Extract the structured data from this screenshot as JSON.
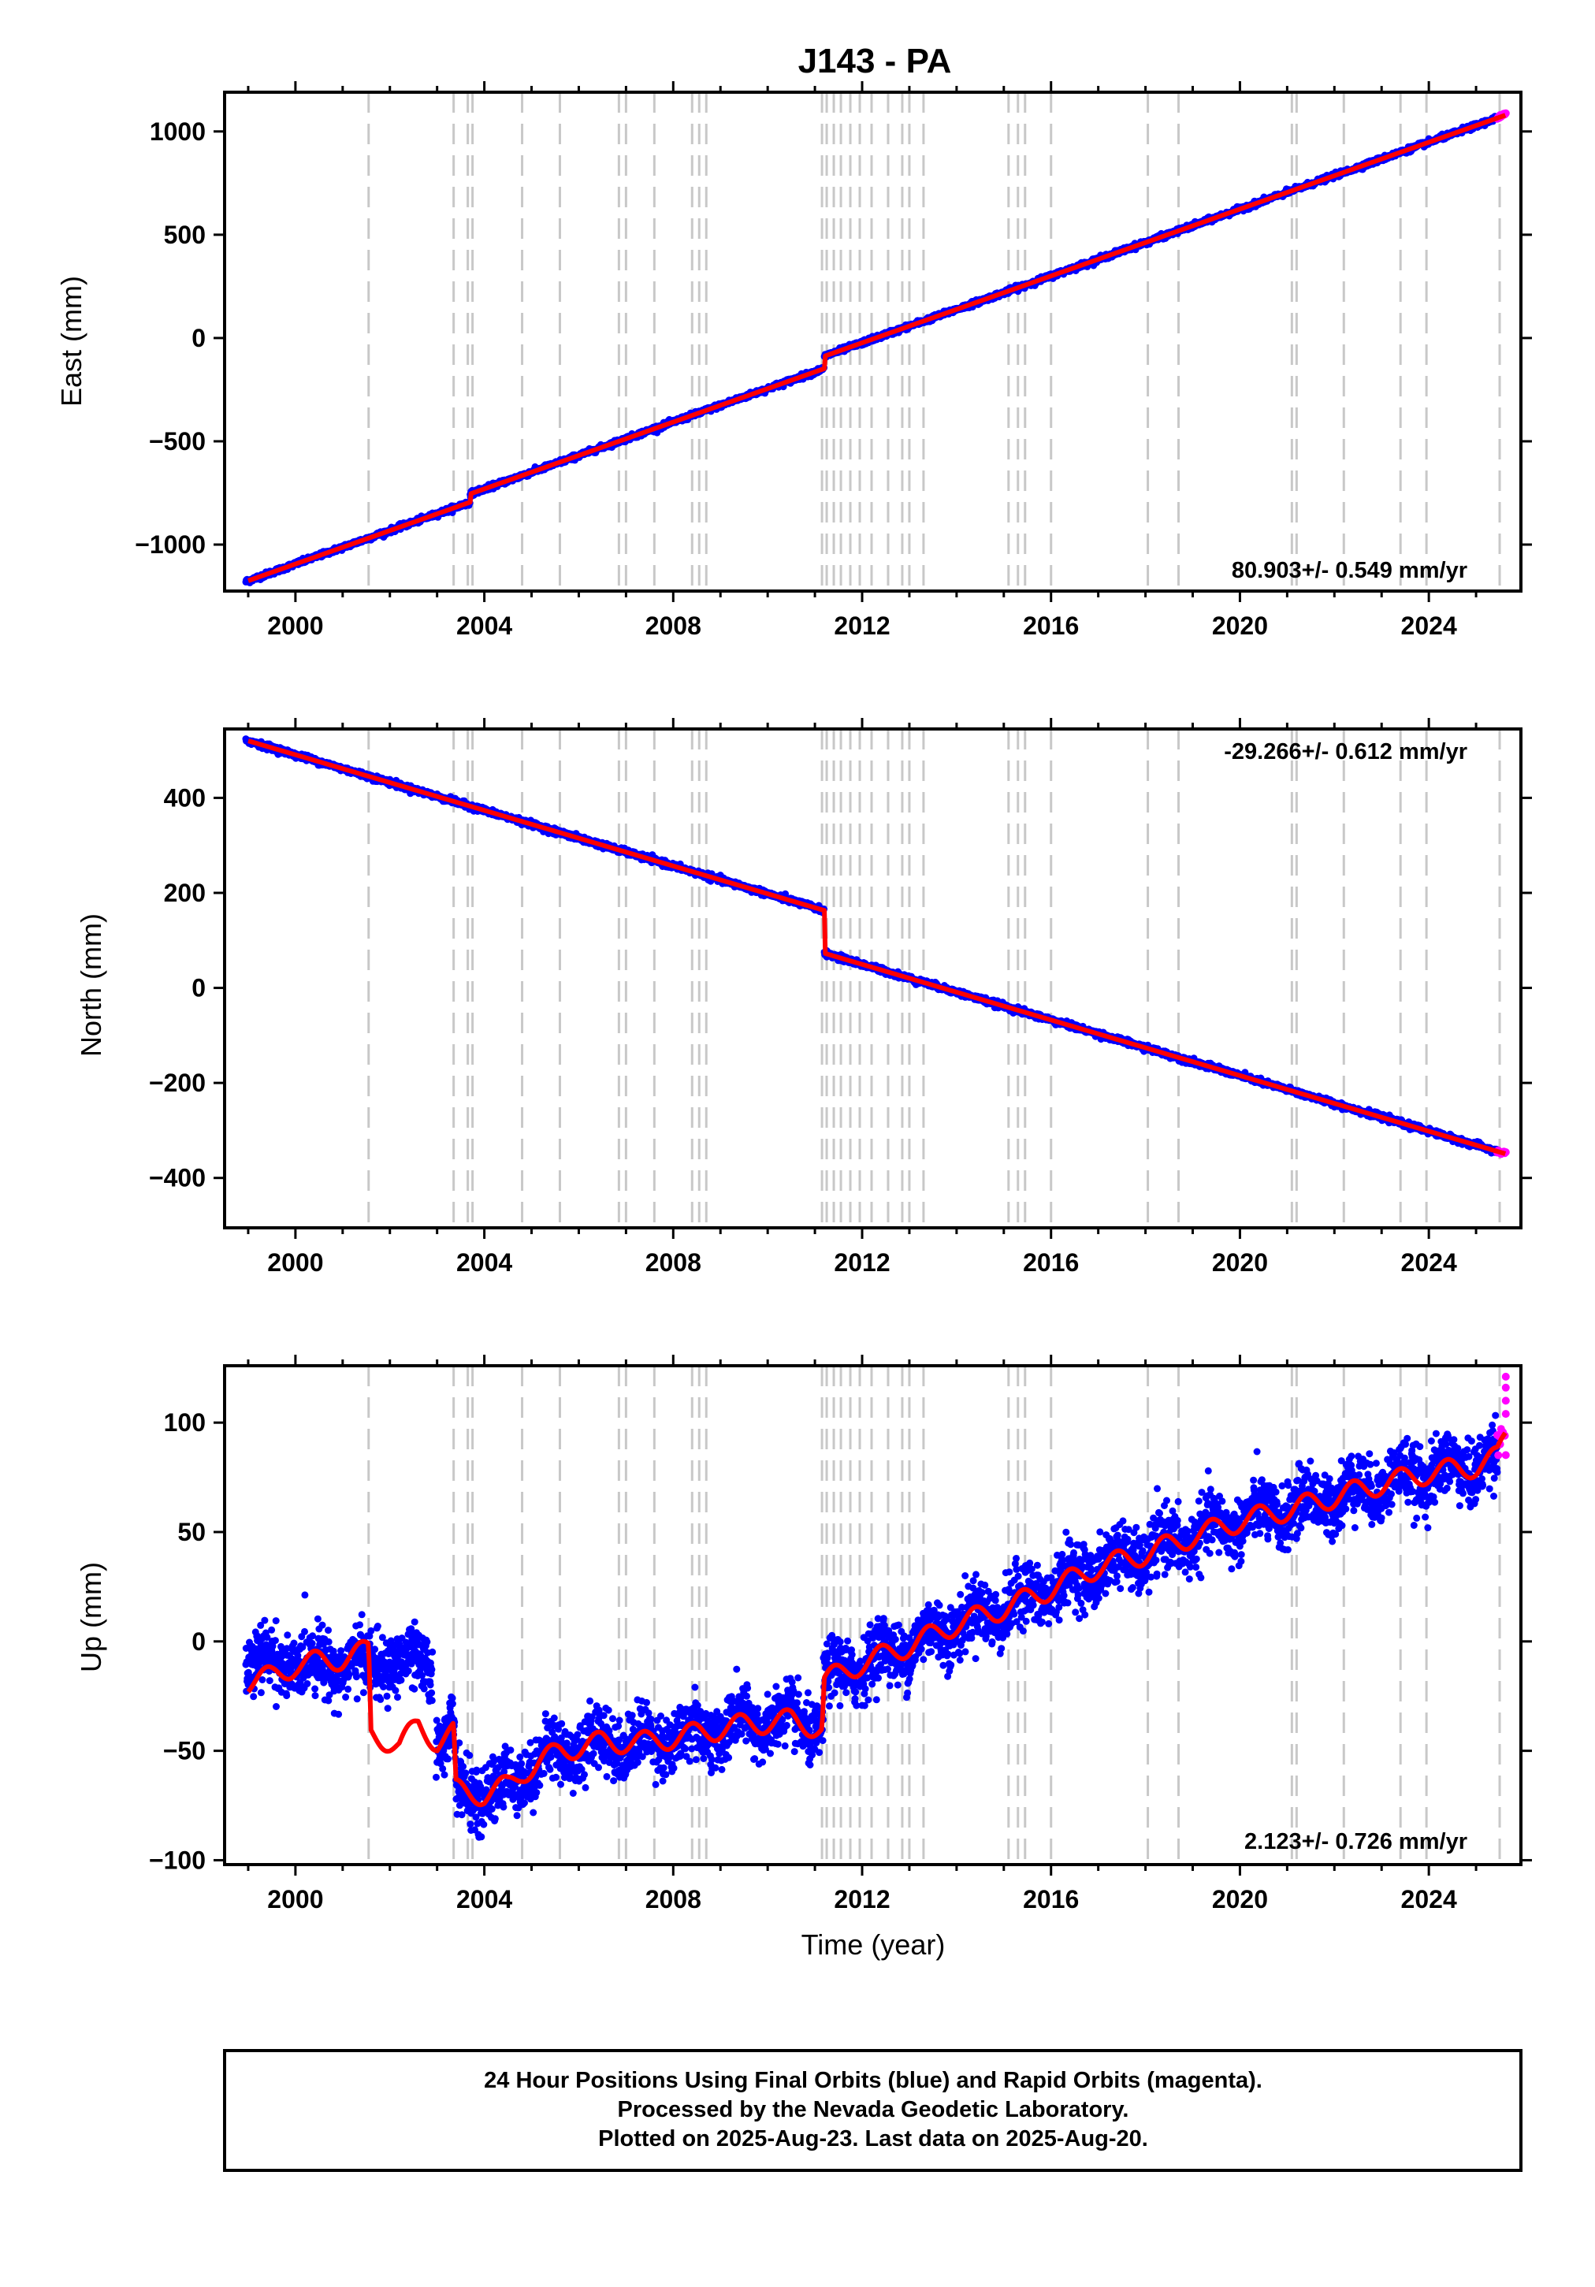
{
  "title": "J143 - PA",
  "footer": {
    "line1": "24 Hour Positions Using Final Orbits (blue) and Rapid Orbits (magenta).",
    "line2": "Processed by the Nevada Geodetic Laboratory.",
    "line3": "Plotted on 2025-Aug-23. Last data on 2025-Aug-20."
  },
  "colors": {
    "final": "#0000ff",
    "rapid": "#ff00ff",
    "model": "#ff0000",
    "event_line": "#c8c8c8"
  },
  "chart_data": [
    {
      "type": "scatter",
      "ylabel": "East (mm)",
      "xlabel": "",
      "rate_label": "80.903+/- 0.549 mm/yr",
      "rate_position": "bottom-right",
      "xlim": [
        1998.5,
        2025.95
      ],
      "ylim": [
        -1225,
        1190
      ],
      "xticks": [
        2000,
        2004,
        2008,
        2012,
        2016,
        2020,
        2024
      ],
      "xtick_labels": [
        "2000",
        "2004",
        "2008",
        "2012",
        "2016",
        "2020",
        "2024"
      ],
      "yticks": [
        1000,
        500,
        0,
        -500,
        -1000
      ],
      "ytick_labels": [
        "1000",
        "500",
        "0",
        "−500",
        "−1000"
      ],
      "event_lines": [
        2001.55,
        2003.35,
        2003.65,
        2003.75,
        2004.8,
        2005.6,
        2006.85,
        2007.0,
        2007.6,
        2008.4,
        2008.55,
        2008.7,
        2011.15,
        2011.25,
        2011.4,
        2011.55,
        2011.75,
        2011.95,
        2012.2,
        2012.55,
        2012.85,
        2013.0,
        2013.3,
        2015.1,
        2015.3,
        2015.45,
        2016.0,
        2018.05,
        2018.7,
        2021.1,
        2021.2,
        2022.2,
        2023.4,
        2023.95,
        2025.5
      ],
      "trend": {
        "start_year": 1999.0,
        "start_value": -1175,
        "rate": 80.903
      },
      "offsets": [
        {
          "year": 2003.7,
          "value": 40
        },
        {
          "year": 2011.2,
          "value": 60
        }
      ],
      "final_series": {
        "name": "Final Orbits",
        "x_range": [
          1998.95,
          2025.45
        ],
        "noise": 6,
        "seasonal_amp": 2,
        "gaps": []
      },
      "rapid_series": {
        "name": "Rapid Orbits",
        "x_range": [
          2025.45,
          2025.63
        ],
        "noise": 6
      }
    },
    {
      "type": "scatter",
      "ylabel": "North (mm)",
      "xlabel": "",
      "rate_label": "-29.266+/- 0.612 mm/yr",
      "rate_position": "top-right",
      "xlim": [
        1998.5,
        2025.95
      ],
      "ylim": [
        -505,
        545
      ],
      "xticks": [
        2000,
        2004,
        2008,
        2012,
        2016,
        2020,
        2024
      ],
      "xtick_labels": [
        "2000",
        "2004",
        "2008",
        "2012",
        "2016",
        "2020",
        "2024"
      ],
      "yticks": [
        400,
        200,
        0,
        -200,
        -400
      ],
      "ytick_labels": [
        "400",
        "200",
        "0",
        "−200",
        "−400"
      ],
      "event_lines": [
        2001.55,
        2003.35,
        2003.65,
        2003.75,
        2004.8,
        2005.6,
        2006.85,
        2007.0,
        2007.6,
        2008.4,
        2008.55,
        2008.7,
        2011.15,
        2011.25,
        2011.4,
        2011.55,
        2011.75,
        2011.95,
        2012.2,
        2012.55,
        2012.85,
        2013.0,
        2013.3,
        2015.1,
        2015.3,
        2015.45,
        2016.0,
        2018.05,
        2018.7,
        2021.1,
        2021.2,
        2022.2,
        2023.4,
        2023.95,
        2025.5
      ],
      "trend": {
        "start_year": 1999.0,
        "start_value": 520,
        "rate": -29.266
      },
      "offsets": [
        {
          "year": 2011.2,
          "value": -90
        }
      ],
      "final_series": {
        "name": "Final Orbits",
        "x_range": [
          1998.95,
          2025.45
        ],
        "noise": 3,
        "seasonal_amp": 2,
        "gaps": []
      },
      "rapid_series": {
        "name": "Rapid Orbits",
        "x_range": [
          2025.45,
          2025.63
        ],
        "noise": 3
      }
    },
    {
      "type": "scatter",
      "ylabel": "Up (mm)",
      "xlabel": "Time (year)",
      "rate_label": "2.123+/- 0.726 mm/yr",
      "rate_position": "bottom-right",
      "xlim": [
        1998.5,
        2025.95
      ],
      "ylim": [
        -102,
        126
      ],
      "xticks": [
        2000,
        2004,
        2008,
        2012,
        2016,
        2020,
        2024
      ],
      "xtick_labels": [
        "2000",
        "2004",
        "2008",
        "2012",
        "2016",
        "2020",
        "2024"
      ],
      "yticks": [
        100,
        50,
        0,
        -50,
        -100
      ],
      "ytick_labels": [
        "100",
        "50",
        "0",
        "−50",
        "−100"
      ],
      "event_lines": [
        2001.55,
        2003.35,
        2003.65,
        2003.75,
        2004.8,
        2005.6,
        2006.85,
        2007.0,
        2007.6,
        2008.4,
        2008.55,
        2008.7,
        2011.15,
        2011.25,
        2011.4,
        2011.55,
        2011.75,
        2011.95,
        2012.2,
        2012.55,
        2012.85,
        2013.0,
        2013.3,
        2015.1,
        2015.3,
        2015.45,
        2016.0,
        2018.05,
        2018.7,
        2021.1,
        2021.2,
        2022.2,
        2023.4,
        2023.95,
        2025.5
      ],
      "model_knots": [
        [
          1999.0,
          -19
        ],
        [
          1999.5,
          -16
        ],
        [
          2000.0,
          -11
        ],
        [
          2000.5,
          -9
        ],
        [
          2001.0,
          -8
        ],
        [
          2001.55,
          -4
        ],
        [
          2001.6,
          -42
        ],
        [
          2002.2,
          -48
        ],
        [
          2002.6,
          -38
        ],
        [
          2003.0,
          -46
        ],
        [
          2003.35,
          -42
        ],
        [
          2003.4,
          -68
        ],
        [
          2004.0,
          -70
        ],
        [
          2004.5,
          -66
        ],
        [
          2004.8,
          -60
        ],
        [
          2005.6,
          -50
        ],
        [
          2006.5,
          -46
        ],
        [
          2007.5,
          -46
        ],
        [
          2008.5,
          -42
        ],
        [
          2009.5,
          -38
        ],
        [
          2010.5,
          -36
        ],
        [
          2011.15,
          -40
        ],
        [
          2011.2,
          -18
        ],
        [
          2012.0,
          -10
        ],
        [
          2013.0,
          -2
        ],
        [
          2014.0,
          8
        ],
        [
          2015.0,
          15
        ],
        [
          2016.0,
          24
        ],
        [
          2017.0,
          34
        ],
        [
          2018.0,
          40
        ],
        [
          2019.0,
          48
        ],
        [
          2020.0,
          55
        ],
        [
          2021.0,
          60
        ],
        [
          2022.0,
          66
        ],
        [
          2023.0,
          72
        ],
        [
          2024.0,
          77
        ],
        [
          2025.0,
          80
        ],
        [
          2025.45,
          84
        ],
        [
          2025.63,
          95
        ]
      ],
      "model_seasonal_amp": 5,
      "final_series": {
        "name": "Final Orbits",
        "x_range": [
          1998.95,
          2025.45
        ],
        "noise": 7,
        "seasonal_amp": 5,
        "gaps": [
          [
            2002.9,
            2002.98
          ]
        ],
        "segments": [
          [
            1998.95,
            2002.9
          ],
          [
            2002.98,
            2025.45
          ]
        ],
        "segment_offsets": [
          0,
          -25
        ]
      },
      "rapid_series": {
        "name": "Rapid Orbits",
        "x_range": [
          2025.45,
          2025.63
        ],
        "noise": 6,
        "outliers": [
          121,
          116,
          110,
          104
        ]
      }
    }
  ]
}
